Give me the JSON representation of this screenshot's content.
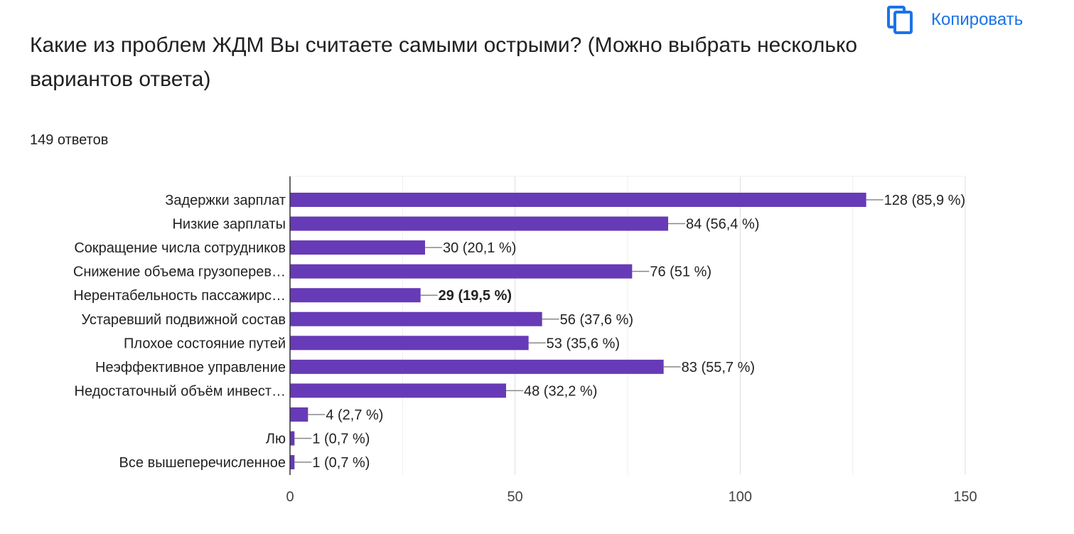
{
  "header": {
    "copy_label": "Копировать",
    "copy_icon": "copy-icon"
  },
  "question": {
    "title": "Какие из проблем ЖДМ Вы считаете самыми острыми? (Можно выбрать несколько вариантов ответа)",
    "response_count": "149 ответов"
  },
  "colors": {
    "bar": "#673ab7",
    "accent": "#1a73e8",
    "grid": "#e8e8e8",
    "axis": "#333333"
  },
  "chart_data": {
    "type": "bar",
    "orientation": "horizontal",
    "categories": [
      "Задержки зарплат",
      "Низкие зарплаты",
      "Сокращение числа сотрудников",
      "Снижение объема грузоперев…",
      "Нерентабельность пассажирс…",
      "Устаревший подвижной состав",
      "Плохое состояние путей",
      "Неэффективное управление",
      "Недостаточный объём инвест…",
      "",
      "Лю",
      "Все вышеперечисленное"
    ],
    "values": [
      128,
      84,
      30,
      76,
      29,
      56,
      53,
      83,
      48,
      4,
      1,
      1
    ],
    "data_labels": [
      "128 (85,9 %)",
      "84 (56,4 %)",
      "30 (20,1 %)",
      "76 (51 %)",
      "29 (19,5 %)",
      "56 (37,6 %)",
      "53 (35,6 %)",
      "83 (55,7 %)",
      "48 (32,2 %)",
      "4 (2,7 %)",
      "1 (0,7 %)",
      "1 (0,7 %)"
    ],
    "highlighted_index": 4,
    "xlim": [
      0,
      150
    ],
    "xticks": [
      0,
      50,
      100,
      150
    ],
    "grid": true
  }
}
